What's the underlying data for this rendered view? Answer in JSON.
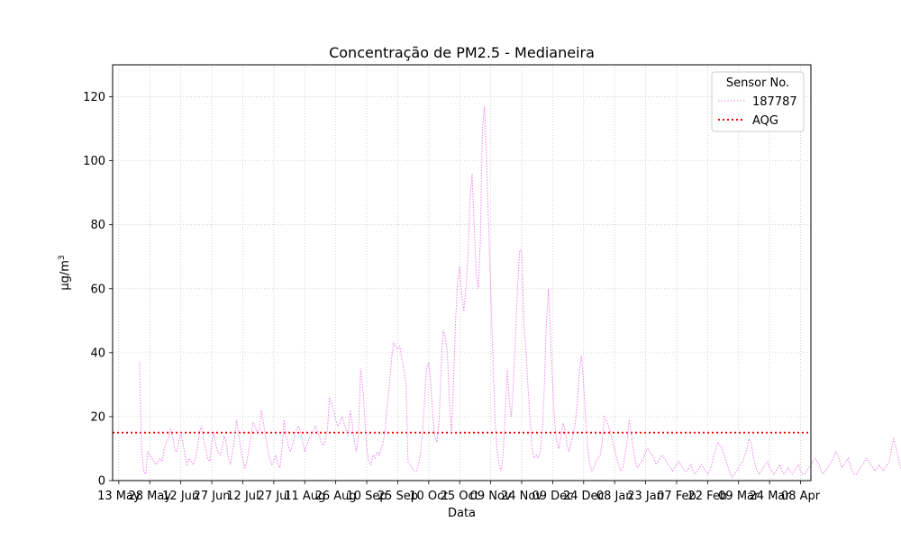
{
  "chart_data": {
    "type": "line",
    "title": "Concentração de PM2.5 - Medianeira",
    "xlabel": "Data",
    "ylabel_main": "μg/m",
    "ylabel_sup": "3",
    "ylim": [
      0,
      130
    ],
    "yticks": [
      0,
      20,
      40,
      60,
      80,
      100,
      120
    ],
    "xlim": [
      "2021-05-10",
      "2022-04-13"
    ],
    "xticks": [
      {
        "date": "2021-05-13",
        "label": "13 May"
      },
      {
        "date": "2021-05-28",
        "label": "28 May"
      },
      {
        "date": "2021-06-12",
        "label": "12 Jun"
      },
      {
        "date": "2021-06-27",
        "label": "27 Jun"
      },
      {
        "date": "2021-07-12",
        "label": "12 Jul"
      },
      {
        "date": "2021-07-27",
        "label": "27 Jul"
      },
      {
        "date": "2021-08-11",
        "label": "11 Aug"
      },
      {
        "date": "2021-08-26",
        "label": "26 Aug"
      },
      {
        "date": "2021-09-10",
        "label": "10 Sep"
      },
      {
        "date": "2021-09-25",
        "label": "25 Sep"
      },
      {
        "date": "2021-10-10",
        "label": "10 Oct"
      },
      {
        "date": "2021-10-25",
        "label": "25 Oct"
      },
      {
        "date": "2021-11-09",
        "label": "09 Nov"
      },
      {
        "date": "2021-11-24",
        "label": "24 Nov"
      },
      {
        "date": "2021-12-09",
        "label": "09 Dec"
      },
      {
        "date": "2021-12-24",
        "label": "24 Dec"
      },
      {
        "date": "2022-01-08",
        "label": "08 Jan"
      },
      {
        "date": "2022-01-23",
        "label": "23 Jan"
      },
      {
        "date": "2022-02-07",
        "label": "07 Feb"
      },
      {
        "date": "2022-02-22",
        "label": "22 Feb"
      },
      {
        "date": "2022-03-09",
        "label": "09 Mar"
      },
      {
        "date": "2022-03-24",
        "label": "24 Mar"
      },
      {
        "date": "2022-04-08",
        "label": "08 Apr"
      }
    ],
    "grid": true,
    "legend": {
      "title": "Sensor No.",
      "placement": "top-right",
      "entries": [
        {
          "label": "187787",
          "color": "#ee82ee",
          "style": "dotted"
        },
        {
          "label": "AQG",
          "color": "#ff0000",
          "style": "dotted"
        }
      ]
    },
    "reference_line": {
      "name": "AQG",
      "value": 15,
      "color": "#ff0000"
    },
    "series": [
      {
        "name": "187787",
        "color": "#ee82ee",
        "start_date": "2021-05-23",
        "step_days": 1,
        "values": [
          37,
          10,
          3,
          2,
          9,
          8,
          7,
          6,
          5,
          6,
          7,
          6,
          10,
          12,
          13,
          16,
          14,
          10,
          9,
          12,
          15,
          12,
          8,
          5,
          7,
          6,
          5,
          7,
          10,
          15,
          17,
          13,
          10,
          7,
          6,
          12,
          15,
          11,
          9,
          8,
          10,
          14,
          12,
          7,
          5,
          9,
          13,
          19,
          15,
          10,
          7,
          4,
          6,
          10,
          14,
          18,
          17,
          15,
          16,
          22,
          18,
          14,
          10,
          7,
          5,
          6,
          8,
          5,
          4,
          10,
          19,
          14,
          11,
          9,
          11,
          14,
          16,
          17,
          15,
          12,
          9,
          11,
          13,
          14,
          15,
          17,
          16,
          14,
          12,
          11,
          13,
          16,
          26,
          24,
          22,
          19,
          17,
          18,
          20,
          18,
          16,
          14,
          22,
          18,
          12,
          9,
          14,
          35,
          30,
          20,
          10,
          6,
          5,
          8,
          7,
          9,
          8,
          10,
          12,
          16,
          24,
          30,
          38,
          43,
          42,
          41,
          42,
          38,
          35,
          30,
          6,
          5,
          4,
          3,
          3,
          5,
          8,
          15,
          25,
          35,
          37,
          30,
          20,
          14,
          12,
          18,
          35,
          47,
          45,
          40,
          25,
          15,
          30,
          50,
          62,
          67,
          58,
          53,
          60,
          70,
          88,
          96,
          80,
          65,
          60,
          75,
          110,
          117,
          100,
          80,
          60,
          40,
          20,
          10,
          5,
          3,
          8,
          20,
          35,
          25,
          20,
          30,
          45,
          60,
          72,
          72,
          50,
          41,
          30,
          20,
          10,
          7,
          8,
          7,
          9,
          15,
          30,
          50,
          60,
          45,
          30,
          18,
          12,
          10,
          14,
          18,
          16,
          11,
          9,
          12,
          15,
          18,
          25,
          35,
          39,
          30,
          20,
          10,
          5,
          3,
          4,
          6,
          7,
          8,
          12,
          20,
          19,
          17,
          15,
          12,
          10,
          7,
          5,
          3,
          4,
          8,
          12,
          19,
          15,
          10,
          6,
          4,
          5,
          6,
          7,
          9,
          10,
          9,
          8,
          7,
          5,
          6,
          7,
          8,
          7,
          6,
          5,
          4,
          3,
          4,
          5,
          6,
          5,
          4,
          3,
          3,
          4,
          5,
          3,
          2,
          3,
          4,
          5,
          4,
          3,
          2,
          3,
          5,
          8,
          10,
          12,
          11,
          10,
          8,
          6,
          4,
          2,
          1,
          2,
          3,
          4,
          5,
          6,
          8,
          10,
          13,
          12,
          8,
          5,
          3,
          2,
          3,
          4,
          5,
          6,
          4,
          3,
          2,
          3,
          4,
          5,
          3,
          2,
          3,
          4,
          3,
          2,
          3,
          4,
          5,
          3,
          2,
          2,
          3,
          4,
          5,
          6,
          7,
          6,
          5,
          3,
          2,
          3,
          4,
          5,
          6,
          7,
          9,
          8,
          6,
          4,
          5,
          6,
          7,
          5,
          3,
          2,
          2,
          3,
          4,
          5,
          6,
          7,
          6,
          5,
          4,
          3,
          4,
          5,
          4,
          3,
          4,
          5,
          6,
          10,
          13,
          11,
          8,
          5,
          3,
          2,
          4,
          6,
          8,
          7,
          5,
          3,
          4,
          5,
          6,
          5,
          4,
          3,
          2,
          1,
          2,
          3,
          4,
          3,
          2,
          1,
          2,
          3,
          4,
          3,
          2,
          2,
          3,
          2,
          2,
          3,
          2,
          3,
          4,
          5,
          4,
          3,
          4,
          5,
          6,
          5,
          4,
          3,
          4,
          5,
          6,
          7,
          6,
          5,
          4,
          5,
          6,
          7,
          8,
          10,
          9,
          8,
          6,
          5,
          7,
          11,
          15,
          18,
          14,
          10,
          8,
          6,
          5,
          4,
          6,
          7,
          6,
          5,
          6,
          5
        ]
      }
    ]
  }
}
